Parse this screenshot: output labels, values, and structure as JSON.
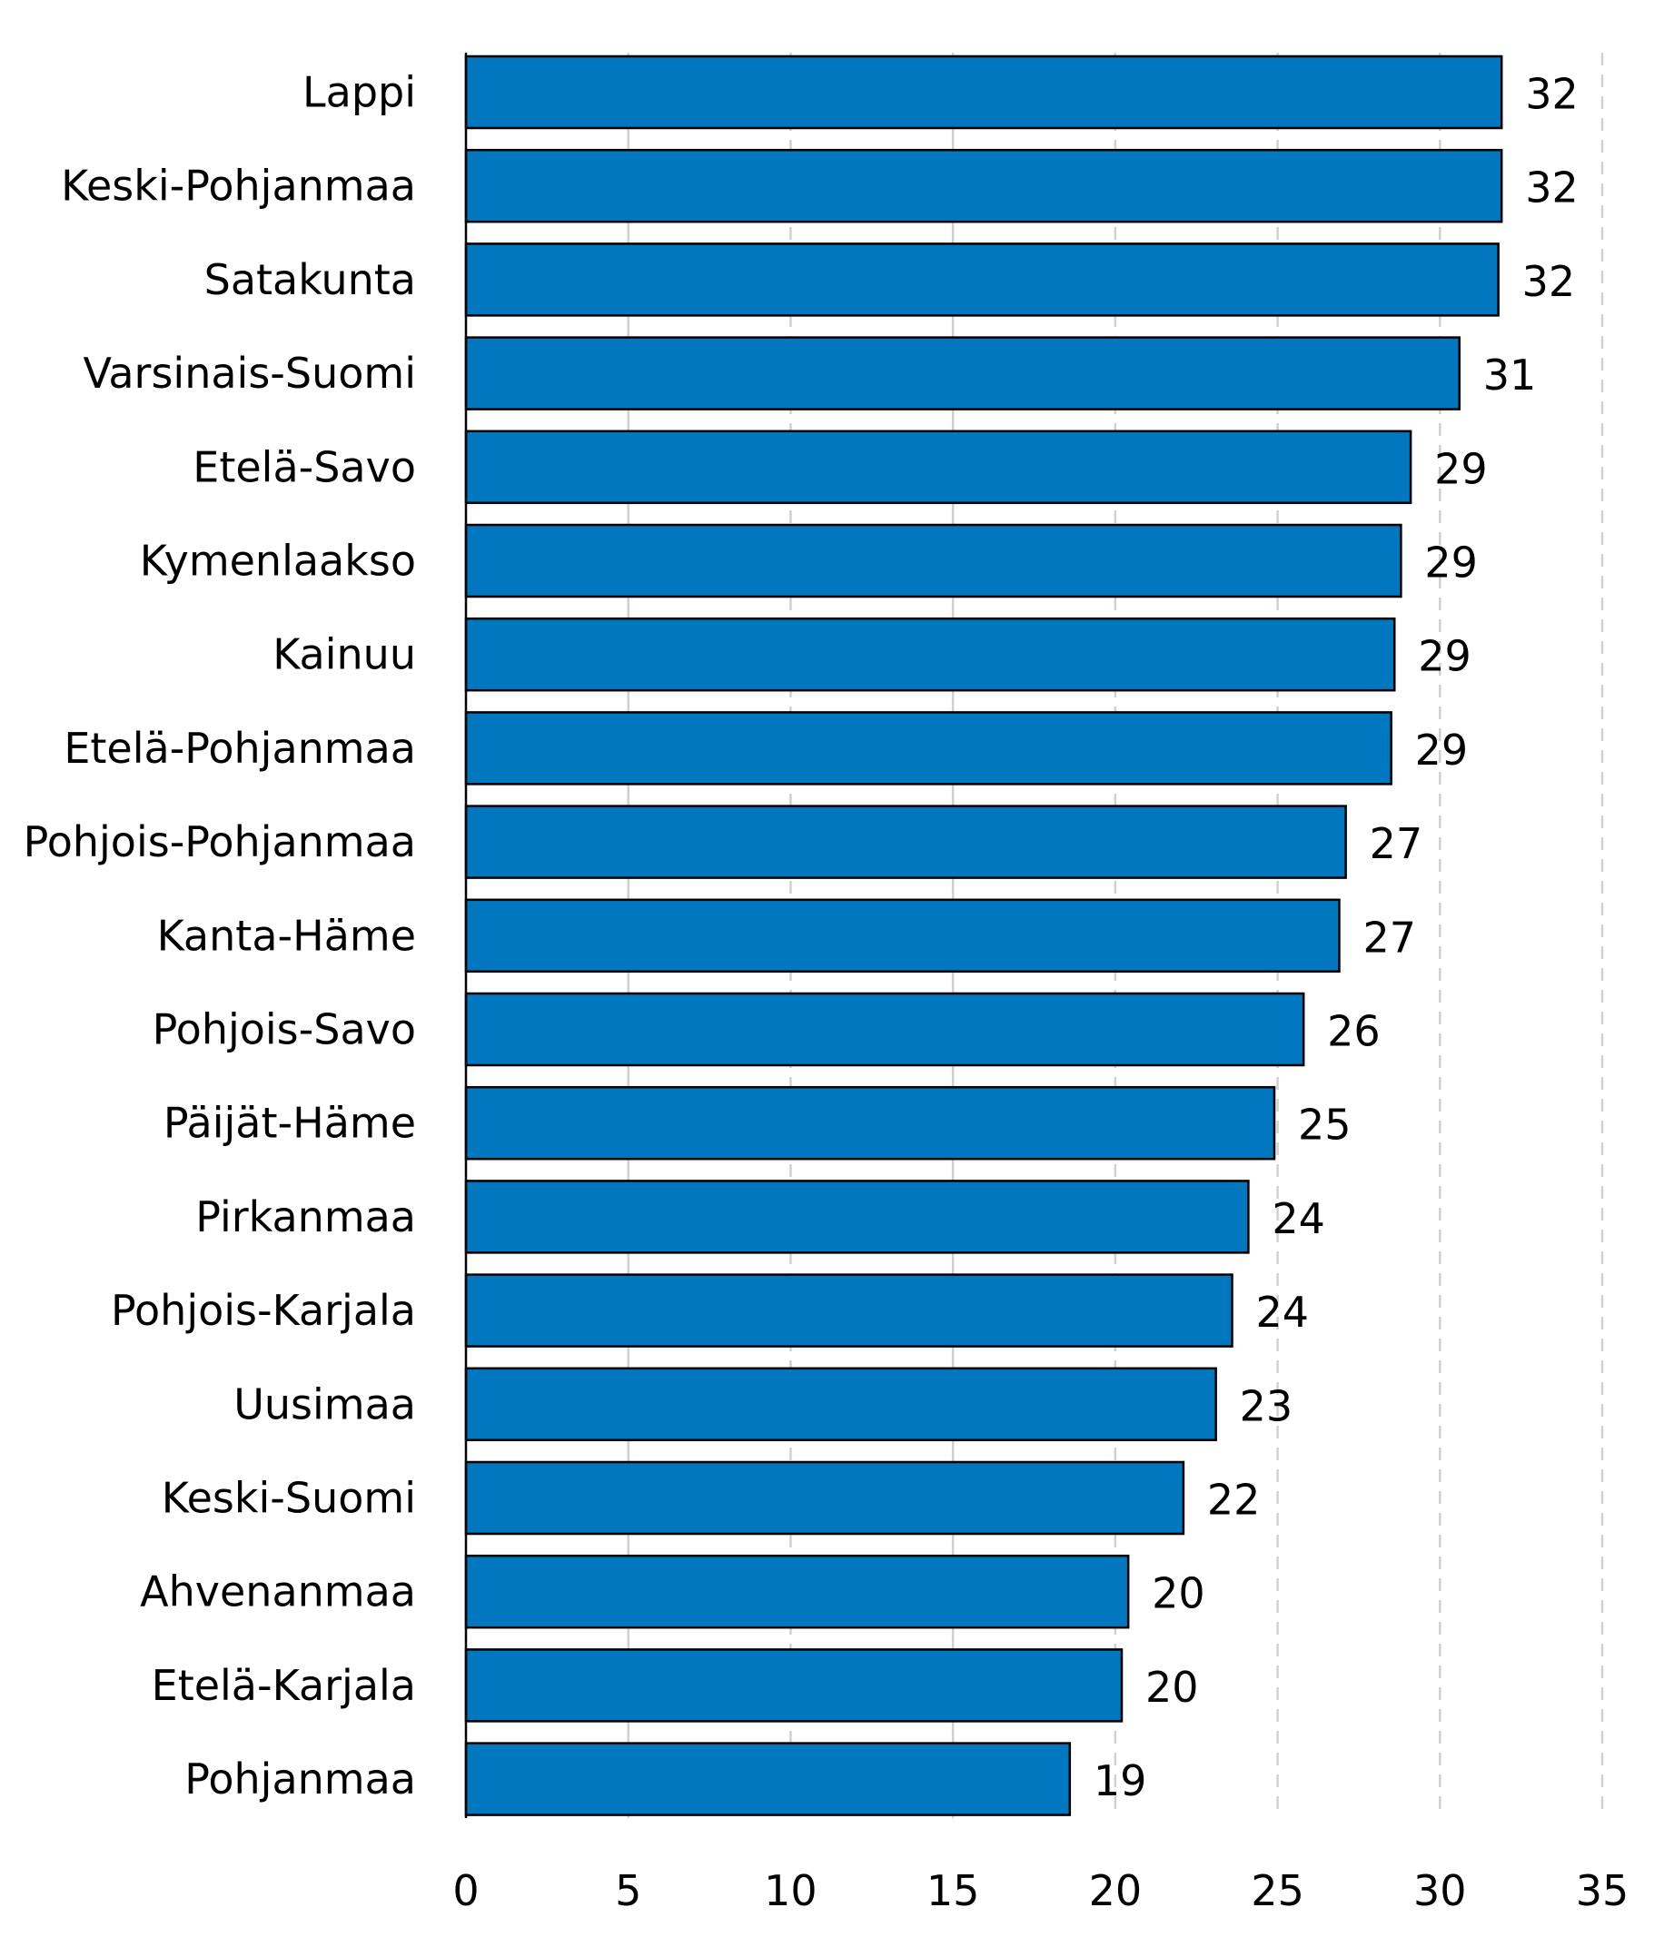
{
  "chart_data": {
    "type": "bar",
    "orientation": "horizontal",
    "categories": [
      "Lappi",
      "Keski-Pohjanmaa",
      "Satakunta",
      "Varsinais-Suomi",
      "Etelä-Savo",
      "Kymenlaakso",
      "Kainuu",
      "Etelä-Pohjanmaa",
      "Pohjois-Pohjanmaa",
      "Kanta-Häme",
      "Pohjois-Savo",
      "Päijät-Häme",
      "Pirkanmaa",
      "Pohjois-Karjala",
      "Uusimaa",
      "Keski-Suomi",
      "Ahvenanmaa",
      "Etelä-Karjala",
      "Pohjanmaa"
    ],
    "values": [
      31.9,
      31.9,
      31.8,
      30.6,
      29.1,
      28.8,
      28.6,
      28.5,
      27.1,
      26.9,
      25.8,
      24.9,
      24.1,
      23.6,
      23.1,
      22.1,
      20.4,
      20.2,
      18.6
    ],
    "data_labels": [
      "32",
      "32",
      "32",
      "31",
      "29",
      "29",
      "29",
      "29",
      "27",
      "27",
      "26",
      "25",
      "24",
      "24",
      "23",
      "22",
      "20",
      "20",
      "19"
    ],
    "xlim": [
      0,
      35
    ],
    "xticks": [
      0,
      5,
      10,
      15,
      20,
      25,
      30,
      35
    ],
    "xtick_labels": [
      "0",
      "5",
      "10",
      "15",
      "20",
      "25",
      "30",
      "35"
    ],
    "grid": "vertical dashed",
    "title": "",
    "xlabel": "",
    "ylabel": "",
    "colors": {
      "bar": "#0077BE",
      "bar_edge": "#000000",
      "grid": "#D0D0D0",
      "axis": "#000000"
    }
  }
}
